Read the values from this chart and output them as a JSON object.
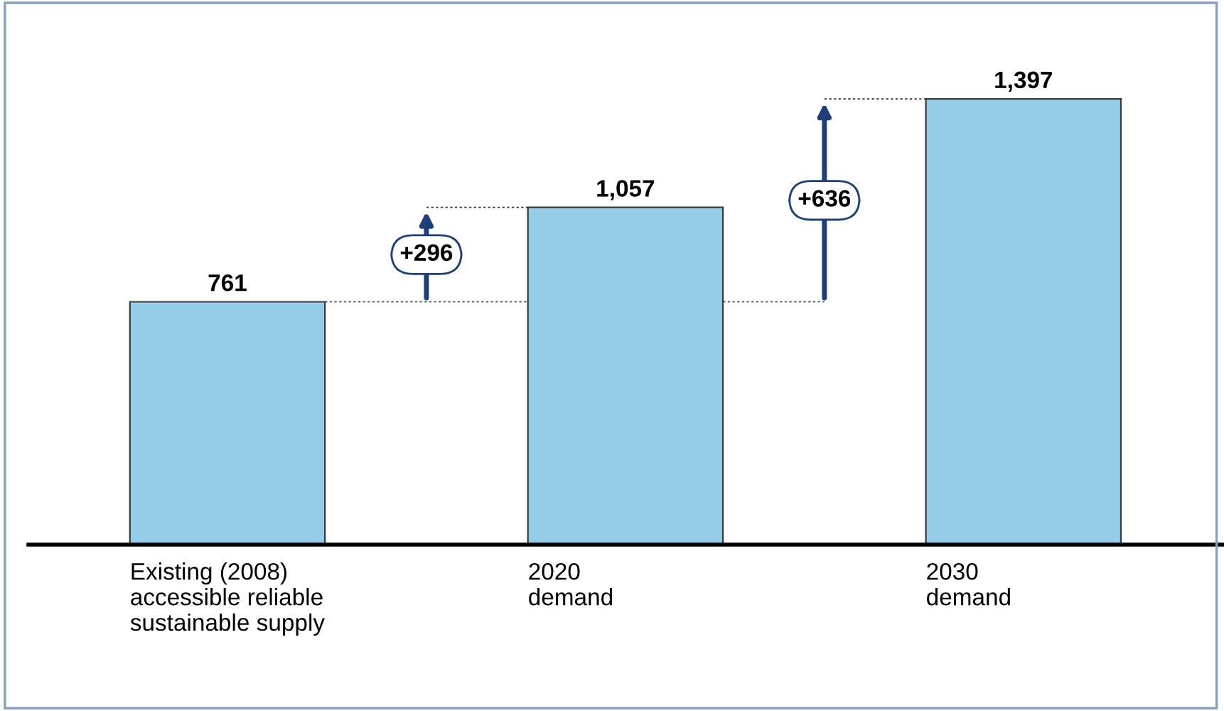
{
  "chart_data": {
    "type": "bar",
    "categories": [
      "Existing (2008)\naccessible reliable\nsustainable supply",
      "2020\ndemand",
      "2030\ndemand"
    ],
    "values": [
      761,
      1057,
      1397
    ],
    "value_labels": [
      "761",
      "1,057",
      "1,397"
    ],
    "color": "#95cde9",
    "annotations": [
      "+296",
      "+636"
    ],
    "ref_lines": [
      {
        "axis": "y",
        "value": 761,
        "line_style": "dotted"
      }
    ]
  }
}
